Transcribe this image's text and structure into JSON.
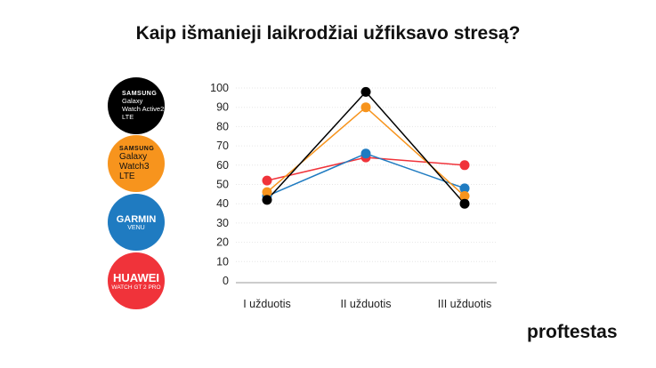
{
  "chart_data": {
    "type": "line",
    "title": "Kaip išmanieji laikrodžiai užfiksavo stresą?",
    "categories": [
      "I užduotis",
      "II užduotis",
      "III užduotis"
    ],
    "ylim": [
      0,
      100
    ],
    "yticks": [
      0,
      10,
      20,
      30,
      40,
      50,
      60,
      70,
      80,
      90,
      100
    ],
    "grid": true,
    "legend_placement": "left",
    "series": [
      {
        "name": "Samsung Galaxy Watch Active2 LTE",
        "color": "#000000",
        "values": [
          42,
          98,
          40
        ]
      },
      {
        "name": "Samsung Galaxy Watch3 LTE",
        "color": "#f7941d",
        "values": [
          46,
          90,
          44
        ]
      },
      {
        "name": "Garmin Venu",
        "color": "#1f7bc1",
        "values": [
          44,
          66,
          48
        ]
      },
      {
        "name": "Huawei Watch GT 2 Pro",
        "color": "#f0333a",
        "values": [
          52,
          64,
          60
        ]
      }
    ]
  },
  "legend": [
    {
      "brand": "SAMSUNG",
      "model": "Galaxy",
      "model2": "Watch Active2",
      "model3": "LTE",
      "color": "#000000",
      "text_color": "#ffffff"
    },
    {
      "brand": "SAMSUNG",
      "model": "Galaxy",
      "model2": "Watch3 LTE",
      "color": "#f7941d",
      "text_color": "#111111"
    },
    {
      "brand": "GARMIN",
      "model": "VENU",
      "color": "#1f7bc1",
      "text_color": "#ffffff"
    },
    {
      "brand": "HUAWEI",
      "model": "WATCH GT 2 PRO",
      "color": "#f0333a",
      "text_color": "#ffffff"
    }
  ],
  "brand": {
    "logo": "proftestas"
  }
}
